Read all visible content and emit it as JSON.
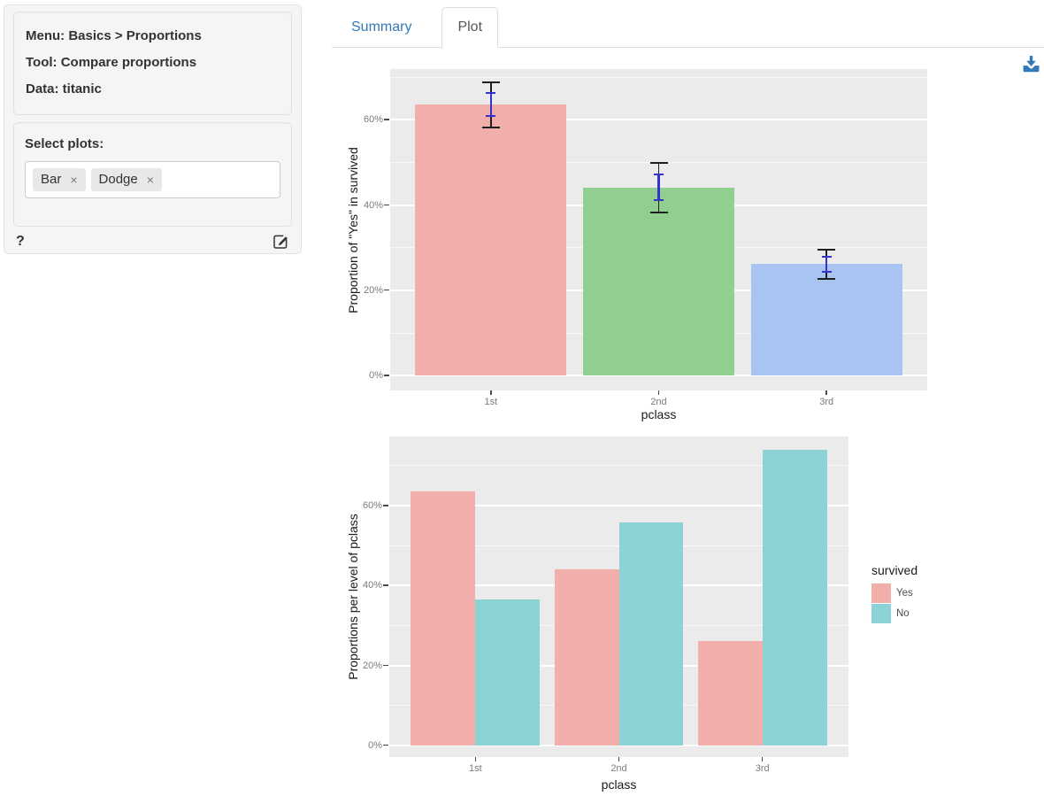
{
  "sidebar": {
    "info_lines": [
      "Menu: Basics > Proportions",
      "Tool: Compare proportions",
      "Data: titanic"
    ],
    "select_plots_label": "Select plots:",
    "plot_tags": [
      {
        "label": "Bar"
      },
      {
        "label": "Dodge"
      }
    ],
    "tag_remove_glyph": "×",
    "help_label": "?"
  },
  "tabs": [
    {
      "label": "Summary",
      "active": false
    },
    {
      "label": "Plot",
      "active": true
    }
  ],
  "icons": {
    "download_icon": "download-arrow-to-tray",
    "edit_icon": "pencil-in-square",
    "help_icon": "question-mark",
    "remove_tag_icon": "x-cross"
  },
  "colors": {
    "link_blue": "#337ab7",
    "download_icon_blue": "#3279b7",
    "panel_background": "#ebebeb",
    "gridline": "#ffffff",
    "errorbar_ci_black": "#1f1f1f",
    "errorbar_se_blue": "#3333cc"
  },
  "chart_data": [
    {
      "type": "bar",
      "title": "",
      "categories": [
        "1st",
        "2nd",
        "3rd"
      ],
      "values": [
        63.5,
        44.1,
        26.1
      ],
      "bar_colors": [
        "#f2aeab",
        "#90cf90",
        "#aac4f1"
      ],
      "error_bars": {
        "ci_95": [
          [
            58.1,
            68.8
          ],
          [
            38.2,
            49.9
          ],
          [
            22.6,
            29.5
          ]
        ],
        "std_err": [
          [
            60.8,
            66.2
          ],
          [
            41.1,
            47.1
          ],
          [
            24.4,
            27.8
          ]
        ]
      },
      "xlabel": "pclass",
      "ylabel": "Proportion of \"Yes\" in survived",
      "ytick_values": [
        0,
        20,
        40,
        60
      ],
      "ytick_labels": [
        "0%",
        "20%",
        "40%",
        "60%"
      ],
      "ylim": [
        -3.5,
        71.9
      ],
      "grid": true,
      "legend_position": "none"
    },
    {
      "type": "bar",
      "title": "",
      "categories": [
        "1st",
        "2nd",
        "3rd"
      ],
      "series": [
        {
          "name": "Yes",
          "color": "#f2aeab",
          "values": [
            63.5,
            44.1,
            26.1
          ]
        },
        {
          "name": "No",
          "color": "#8cd3d6",
          "values": [
            36.5,
            55.9,
            73.9
          ]
        }
      ],
      "legend_title": "survived",
      "legend_position": "right",
      "xlabel": "pclass",
      "ylabel": "Proportions per level of pclass",
      "ytick_values": [
        0,
        20,
        40,
        60
      ],
      "ytick_labels": [
        "0%",
        "20%",
        "40%",
        "60%"
      ],
      "ylim": [
        -2.9,
        77.3
      ],
      "grid": true
    }
  ]
}
